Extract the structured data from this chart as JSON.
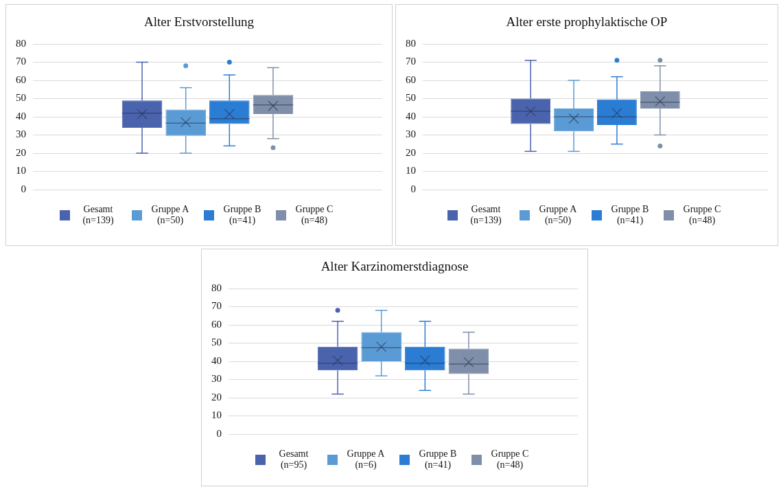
{
  "chart_data": [
    {
      "type": "box",
      "title": "Alter Erstvorstellung",
      "categories": [
        null
      ],
      "ylim": [
        0,
        80
      ],
      "yticks": [
        0,
        10,
        20,
        30,
        40,
        50,
        60,
        70,
        80
      ],
      "grid": "y",
      "legend": "bottom",
      "tick_labels": "y",
      "series": [
        {
          "name": "Gesamt (n=139)",
          "color": "#4a63ad",
          "boxes": [
            {
              "low": 20,
              "q1": 34,
              "median": 42,
              "q3": 49,
              "high": 70,
              "mean": 41.5
            }
          ]
        },
        {
          "name": "Gruppe A (n=50)",
          "color": "#5b9bd5",
          "boxes": [
            {
              "low": 20,
              "q1": 29.5,
              "median": 36.5,
              "q3": 44,
              "high": 56,
              "mean": 37,
              "outliers": [
                68
              ]
            }
          ]
        },
        {
          "name": "Gruppe B (n=41)",
          "color": "#2b7cd3",
          "boxes": [
            {
              "low": 24,
              "q1": 36,
              "median": 39,
              "q3": 49,
              "high": 63,
              "mean": 41.5,
              "outliers": [
                70
              ]
            }
          ]
        },
        {
          "name": "Gruppe C (n=48)",
          "color": "#7f8fa9",
          "boxes": [
            {
              "low": 28,
              "q1": 41.5,
              "median": 46.5,
              "q3": 52,
              "high": 67,
              "mean": 46,
              "outliers": [
                23
              ]
            }
          ]
        }
      ]
    },
    {
      "type": "box",
      "title": "Alter erste prophylaktische OP",
      "categories": [
        null
      ],
      "ylim": [
        0,
        80
      ],
      "yticks": [
        0,
        10,
        20,
        30,
        40,
        50,
        60,
        70,
        80
      ],
      "grid": "y",
      "legend": "bottom",
      "tick_labels": "y",
      "series": [
        {
          "name": "Gesamt (n=139)",
          "color": "#4a63ad",
          "boxes": [
            {
              "low": 21,
              "q1": 36,
              "median": 43,
              "q3": 50,
              "high": 71,
              "mean": 43
            }
          ]
        },
        {
          "name": "Gruppe A (n=50)",
          "color": "#5b9bd5",
          "boxes": [
            {
              "low": 21,
              "q1": 32,
              "median": 40,
              "q3": 44.5,
              "high": 60,
              "mean": 39
            }
          ]
        },
        {
          "name": "Gruppe B (n=41)",
          "color": "#2b7cd3",
          "boxes": [
            {
              "low": 25,
              "q1": 35.5,
              "median": 40,
              "q3": 49.5,
              "high": 62,
              "mean": 42,
              "outliers": [
                71
              ]
            }
          ]
        },
        {
          "name": "Gruppe C (n=48)",
          "color": "#7f8fa9",
          "boxes": [
            {
              "low": 30,
              "q1": 44.5,
              "median": 48,
              "q3": 54,
              "high": 68,
              "mean": 48.5,
              "outliers": [
                71,
                24
              ]
            }
          ]
        }
      ]
    },
    {
      "type": "box",
      "title": "Alter Karzinomerstdiagnose",
      "categories": [
        null
      ],
      "ylim": [
        0,
        80
      ],
      "yticks": [
        0,
        10,
        20,
        30,
        40,
        50,
        60,
        70,
        80
      ],
      "grid": "y",
      "legend": "bottom",
      "tick_labels": "y",
      "series": [
        {
          "name": "Gesamt (n=95)",
          "color": "#4a63ad",
          "boxes": [
            {
              "low": 22,
              "q1": 35,
              "median": 39,
              "q3": 48,
              "high": 62,
              "mean": 40.5,
              "outliers": [
                68
              ]
            }
          ]
        },
        {
          "name": "Gruppe A (n=6)",
          "color": "#5b9bd5",
          "boxes": [
            {
              "low": 32,
              "q1": 40,
              "median": 47.5,
              "q3": 56,
              "high": 68,
              "mean": 48
            }
          ]
        },
        {
          "name": "Gruppe B (n=41)",
          "color": "#2b7cd3",
          "boxes": [
            {
              "low": 24,
              "q1": 35,
              "median": 39,
              "q3": 48,
              "high": 62,
              "mean": 40.5
            }
          ]
        },
        {
          "name": "Gruppe C (n=48)",
          "color": "#7f8fa9",
          "boxes": [
            {
              "low": 22,
              "q1": 33,
              "median": 38.5,
              "q3": 47,
              "high": 56,
              "mean": 39.5
            }
          ]
        }
      ]
    }
  ]
}
